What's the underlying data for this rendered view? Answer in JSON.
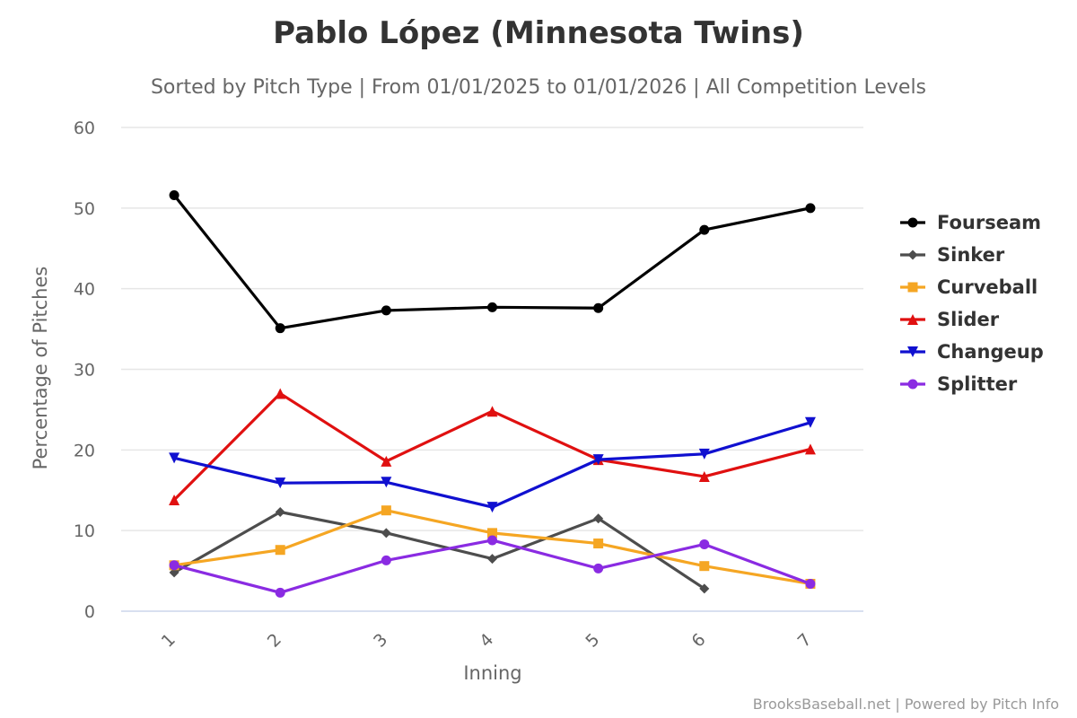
{
  "chart_data": {
    "type": "line",
    "title": "Pablo López (Minnesota Twins)",
    "subtitle": "Sorted by Pitch Type | From 01/01/2025 to 01/01/2026 | All Competition Levels",
    "xlabel": "Inning",
    "ylabel": "Percentage of Pitches",
    "categories": [
      "1",
      "2",
      "3",
      "4",
      "5",
      "6",
      "7"
    ],
    "ylim": [
      0,
      60
    ],
    "yticks": [
      0,
      10,
      20,
      30,
      40,
      50,
      60
    ],
    "grid": true,
    "legend_position": "right",
    "credits": "BrooksBaseball.net | Powered by Pitch Info",
    "series": [
      {
        "name": "Fourseam",
        "color": "#000000",
        "marker": "circle",
        "values": [
          51.6,
          35.1,
          37.3,
          37.7,
          37.6,
          47.3,
          50.0
        ]
      },
      {
        "name": "Sinker",
        "color": "#4d4d4d",
        "marker": "diamond",
        "values": [
          4.8,
          12.3,
          9.7,
          6.5,
          11.5,
          2.8,
          null
        ]
      },
      {
        "name": "Curveball",
        "color": "#f5a623",
        "marker": "square",
        "values": [
          5.7,
          7.6,
          12.5,
          9.7,
          8.4,
          5.6,
          3.4
        ]
      },
      {
        "name": "Slider",
        "color": "#e01010",
        "marker": "triangle",
        "values": [
          13.8,
          27.0,
          18.6,
          24.8,
          18.8,
          16.7,
          20.1
        ]
      },
      {
        "name": "Changeup",
        "color": "#1010d0",
        "marker": "triangle-down",
        "values": [
          19.0,
          15.9,
          16.0,
          12.9,
          18.8,
          19.5,
          23.4
        ]
      },
      {
        "name": "Splitter",
        "color": "#8a2be2",
        "marker": "circle",
        "values": [
          5.7,
          2.3,
          6.3,
          8.8,
          5.3,
          8.3,
          3.4
        ]
      }
    ]
  }
}
